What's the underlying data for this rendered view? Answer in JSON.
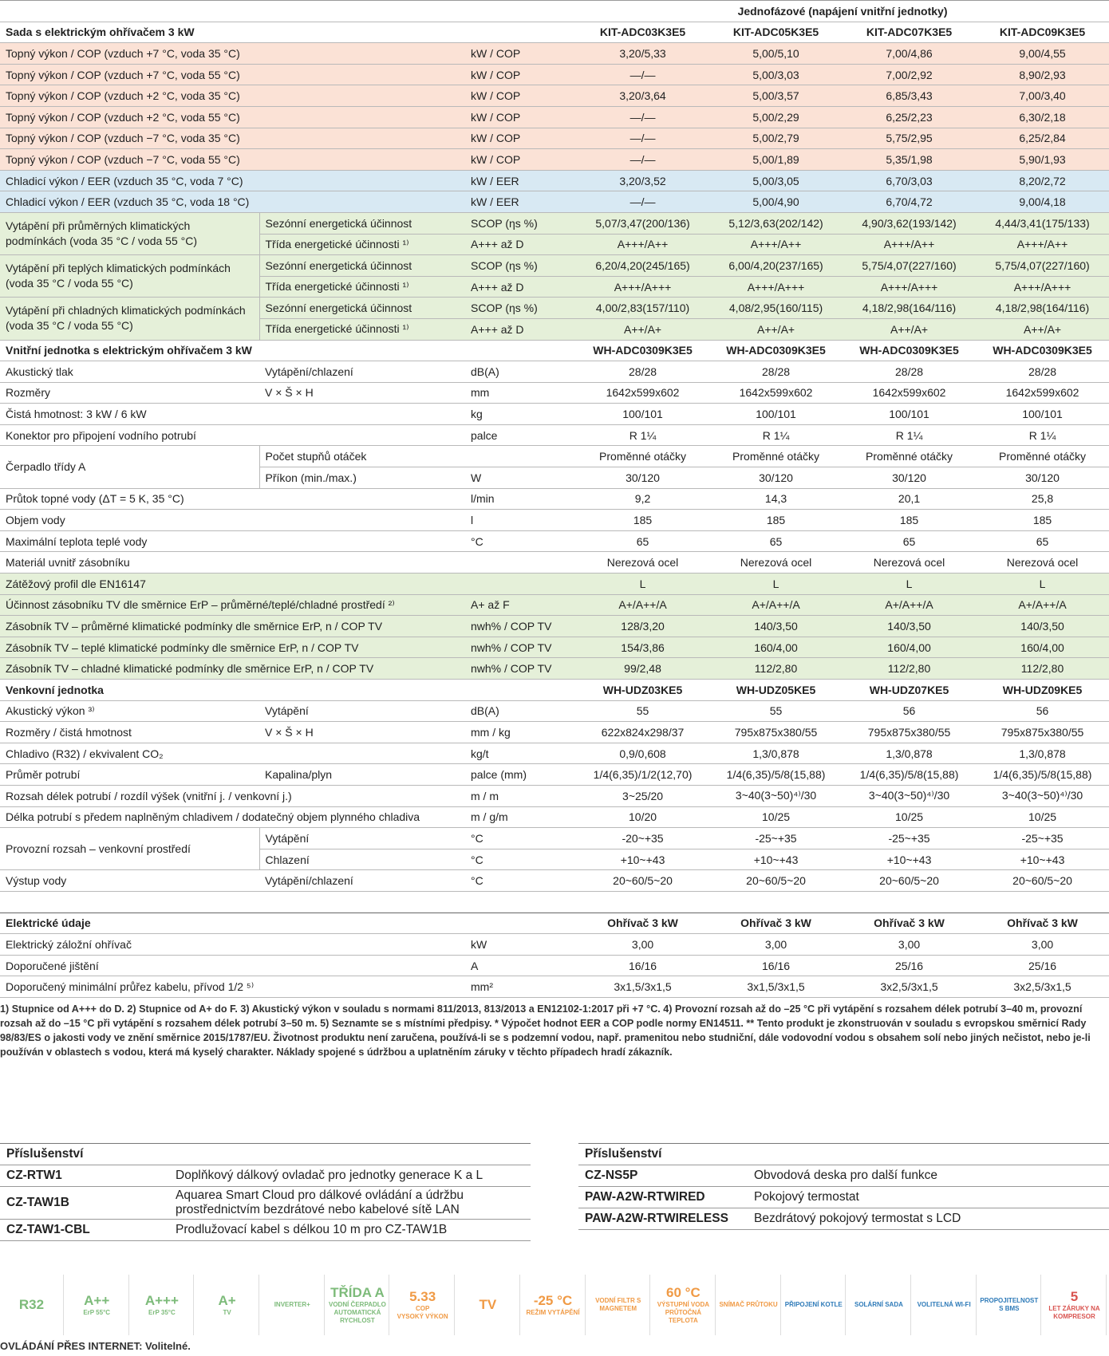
{
  "header_note": "Jednofázové (napájení vnitřní jednotky)",
  "sections": [
    {
      "title": "Sada s elektrickým ohřívačem 3 kW",
      "columns": [
        "KIT-ADC03K3E5",
        "KIT-ADC05K3E5",
        "KIT-ADC07K3E5",
        "KIT-ADC09K3E5"
      ],
      "rows": [
        {
          "label": "Topný výkon / COP (vzduch +7 °C, voda 35 °C)",
          "unit": "kW / COP",
          "values": [
            "3,20/5,33",
            "5,00/5,10",
            "7,00/4,86",
            "9,00/4,55"
          ]
        },
        {
          "label": "Topný výkon / COP (vzduch +7 °C, voda 55 °C)",
          "unit": "kW / COP",
          "values": [
            "—/—",
            "5,00/3,03",
            "7,00/2,92",
            "8,90/2,93"
          ]
        },
        {
          "label": "Topný výkon / COP (vzduch +2 °C, voda 35 °C)",
          "unit": "kW / COP",
          "values": [
            "3,20/3,64",
            "5,00/3,57",
            "6,85/3,43",
            "7,00/3,40"
          ]
        },
        {
          "label": "Topný výkon / COP (vzduch +2 °C, voda 55 °C)",
          "unit": "kW / COP",
          "values": [
            "—/—",
            "5,00/2,29",
            "6,25/2,23",
            "6,30/2,18"
          ]
        },
        {
          "label": "Topný výkon / COP (vzduch −7 °C, voda 35 °C)",
          "unit": "kW / COP",
          "values": [
            "—/—",
            "5,00/2,79",
            "5,75/2,95",
            "6,25/2,84"
          ]
        },
        {
          "label": "Topný výkon / COP (vzduch −7 °C, voda 55 °C)",
          "unit": "kW / COP",
          "values": [
            "—/—",
            "5,00/1,89",
            "5,35/1,98",
            "5,90/1,93"
          ]
        },
        {
          "label": "Chladicí výkon / EER (vzduch 35 °C, voda 7 °C)",
          "unit": "kW / EER",
          "values": [
            "3,20/3,52",
            "5,00/3,05",
            "6,70/3,03",
            "8,20/2,72"
          ]
        },
        {
          "label": "Chladicí výkon / EER (vzduch 35 °C, voda 18 °C)",
          "unit": "kW / EER",
          "values": [
            "—/—",
            "5,00/4,90",
            "6,70/4,72",
            "9,00/4,18"
          ]
        },
        {
          "label": "Vytápění při průměrných klimatických podmínkách (voda 35 °C / voda 55 °C)",
          "rows": [
            {
              "sub": "Sezónní energetická účinnost",
              "unit": "SCOP (ηs %)",
              "values": [
                "5,07/3,47(200/136)",
                "5,12/3,63(202/142)",
                "4,90/3,62(193/142)",
                "4,44/3,41(175/133)"
              ]
            },
            {
              "sub": "Třída energetické účinnosti ¹⁾",
              "unit": "A+++ až D",
              "values": [
                "A+++/A++",
                "A+++/A++",
                "A+++/A++",
                "A+++/A++"
              ]
            }
          ]
        },
        {
          "label": "Vytápění při teplých klimatických podmínkách (voda 35 °C / voda 55 °C)",
          "rows": [
            {
              "sub": "Sezónní energetická účinnost",
              "unit": "SCOP (ηs %)",
              "values": [
                "6,20/4,20(245/165)",
                "6,00/4,20(237/165)",
                "5,75/4,07(227/160)",
                "5,75/4,07(227/160)"
              ]
            },
            {
              "sub": "Třída energetické účinnosti ¹⁾",
              "unit": "A+++ až D",
              "values": [
                "A+++/A+++",
                "A+++/A+++",
                "A+++/A+++",
                "A+++/A+++"
              ]
            }
          ]
        },
        {
          "label": "Vytápění při chladných klimatických podmínkách (voda 35 °C / voda 55 °C)",
          "rows": [
            {
              "sub": "Sezónní energetická účinnost",
              "unit": "SCOP (ηs %)",
              "values": [
                "4,00/2,83(157/110)",
                "4,08/2,95(160/115)",
                "4,18/2,98(164/116)",
                "4,18/2,98(164/116)"
              ]
            },
            {
              "sub": "Třída energetické účinnosti ¹⁾",
              "unit": "A+++ až D",
              "values": [
                "A++/A+",
                "A++/A+",
                "A++/A+",
                "A++/A+"
              ]
            }
          ]
        }
      ]
    },
    {
      "title": "Vnitřní jednotka s elektrickým ohřívačem 3 kW",
      "columns": [
        "WH-ADC0309K3E5",
        "WH-ADC0309K3E5",
        "WH-ADC0309K3E5",
        "WH-ADC0309K3E5"
      ],
      "rows": [
        {
          "label": "Akustický tlak",
          "sub": "Vytápění/chlazení",
          "unit": "dB(A)",
          "values": [
            "28/28",
            "28/28",
            "28/28",
            "28/28"
          ]
        },
        {
          "label": "Rozměry",
          "sub": "V × Š × H",
          "unit": "mm",
          "values": [
            "1642x599x602",
            "1642x599x602",
            "1642x599x602",
            "1642x599x602"
          ]
        },
        {
          "label": "Čistá hmotnost: 3 kW / 6 kW",
          "unit": "kg",
          "values": [
            "100/101",
            "100/101",
            "100/101",
            "100/101"
          ]
        },
        {
          "label": "Konektor pro připojení vodního potrubí",
          "unit": "palce",
          "values": [
            "R 1¼",
            "R 1¼",
            "R 1¼",
            "R 1¼"
          ]
        },
        {
          "label": "Čerpadlo třídy A",
          "rows": [
            {
              "sub": "Počet stupňů otáček",
              "values": [
                "Proměnné otáčky",
                "Proměnné otáčky",
                "Proměnné otáčky",
                "Proměnné otáčky"
              ]
            },
            {
              "sub": "Příkon (min./max.)",
              "unit": "W",
              "values": [
                "30/120",
                "30/120",
                "30/120",
                "30/120"
              ]
            }
          ]
        },
        {
          "label": "Průtok topné vody (ΔT = 5 K, 35 °C)",
          "unit": "l/min",
          "values": [
            "9,2",
            "14,3",
            "20,1",
            "25,8"
          ]
        },
        {
          "label": "Objem vody",
          "unit": "l",
          "values": [
            "185",
            "185",
            "185",
            "185"
          ]
        },
        {
          "label": "Maximální teplota teplé vody",
          "unit": "°C",
          "values": [
            "65",
            "65",
            "65",
            "65"
          ]
        },
        {
          "label": "Materiál uvnitř zásobníku",
          "values": [
            "Nerezová ocel",
            "Nerezová ocel",
            "Nerezová ocel",
            "Nerezová ocel"
          ]
        },
        {
          "label": "Zátěžový profil dle EN16147",
          "values": [
            "L",
            "L",
            "L",
            "L"
          ]
        },
        {
          "label": "Účinnost zásobníku TV dle směrnice ErP – průměrné/teplé/chladné prostředí ²⁾",
          "unit": "A+ až F",
          "values": [
            "A+/A++/A",
            "A+/A++/A",
            "A+/A++/A",
            "A+/A++/A"
          ]
        },
        {
          "label": "Zásobník TV – průměrné klimatické podmínky dle směrnice ErP, n / COP TV",
          "unit": "nwh% / COP TV",
          "values": [
            "128/3,20",
            "140/3,50",
            "140/3,50",
            "140/3,50"
          ]
        },
        {
          "label": "Zásobník TV – teplé klimatické podmínky dle směrnice ErP, n / COP TV",
          "unit": "nwh% / COP TV",
          "values": [
            "154/3,86",
            "160/4,00",
            "160/4,00",
            "160/4,00"
          ]
        },
        {
          "label": "Zásobník TV – chladné klimatické podmínky dle směrnice ErP, n / COP TV",
          "unit": "nwh% / COP TV",
          "values": [
            "99/2,48",
            "112/2,80",
            "112/2,80",
            "112/2,80"
          ]
        }
      ]
    },
    {
      "title": "Venkovní jednotka",
      "columns": [
        "WH-UDZ03KE5",
        "WH-UDZ05KE5",
        "WH-UDZ07KE5",
        "WH-UDZ09KE5"
      ],
      "rows": [
        {
          "label": "Akustický výkon ³⁾",
          "sub": "Vytápění",
          "unit": "dB(A)",
          "values": [
            "55",
            "55",
            "56",
            "56"
          ]
        },
        {
          "label": "Rozměry / čistá hmotnost",
          "sub": "V × Š × H",
          "unit": "mm / kg",
          "values": [
            "622x824x298/37",
            "795x875x380/55",
            "795x875x380/55",
            "795x875x380/55"
          ]
        },
        {
          "label": "Chladivo (R32) / ekvivalent CO₂",
          "unit": "kg/t",
          "values": [
            "0,9/0,608",
            "1,3/0,878",
            "1,3/0,878",
            "1,3/0,878"
          ]
        },
        {
          "label": "Průměr potrubí",
          "sub": "Kapalina/plyn",
          "unit": "palce (mm)",
          "values": [
            "1/4(6,35)/1/2(12,70)",
            "1/4(6,35)/5/8(15,88)",
            "1/4(6,35)/5/8(15,88)",
            "1/4(6,35)/5/8(15,88)"
          ]
        },
        {
          "label": "Rozsah délek potrubí / rozdíl výšek (vnitřní j. / venkovní j.)",
          "unit": "m / m",
          "values": [
            "3~25/20",
            "3~40(3~50)⁴⁾/30",
            "3~40(3~50)⁴⁾/30",
            "3~40(3~50)⁴⁾/30"
          ]
        },
        {
          "label": "Délka potrubí s předem naplněným chladivem / dodatečný objem plynného chladiva",
          "unit": "m / g/m",
          "values": [
            "10/20",
            "10/25",
            "10/25",
            "10/25"
          ]
        },
        {
          "label": "Provozní rozsah – venkovní prostředí",
          "rows": [
            {
              "sub": "Vytápění",
              "unit": "°C",
              "values": [
                "-20~+35",
                "-25~+35",
                "-25~+35",
                "-25~+35"
              ]
            },
            {
              "sub": "Chlazení",
              "unit": "°C",
              "values": [
                "+10~+43",
                "+10~+43",
                "+10~+43",
                "+10~+43"
              ]
            }
          ]
        },
        {
          "label": "Výstup vody",
          "sub": "Vytápění/chlazení",
          "unit": "°C",
          "values": [
            "20~60/5~20",
            "20~60/5~20",
            "20~60/5~20",
            "20~60/5~20"
          ]
        }
      ]
    },
    {
      "title": "Elektrické údaje",
      "columns": [
        "Ohřívač 3 kW",
        "Ohřívač 3 kW",
        "Ohřívač 3 kW",
        "Ohřívač 3 kW"
      ],
      "rows": [
        {
          "label": "Elektrický záložní ohřívač",
          "unit": "kW",
          "values": [
            "3,00",
            "3,00",
            "3,00",
            "3,00"
          ]
        },
        {
          "label": "Doporučené jištění",
          "unit": "A",
          "values": [
            "16/16",
            "16/16",
            "25/16",
            "25/16"
          ]
        },
        {
          "label": "Doporučený minimální průřez kabelu, přívod 1/2 ⁵⁾",
          "unit": "mm²",
          "values": [
            "3x1,5/3x1,5",
            "3x1,5/3x1,5",
            "3x2,5/3x1,5",
            "3x2,5/3x1,5"
          ]
        }
      ]
    }
  ],
  "footnote": "1) Stupnice od A+++ do D. 2) Stupnice od A+ do F. 3) Akustický výkon v souladu s normami 811/2013, 813/2013 a EN12102-1:2017 při +7 °C. 4) Provozní rozsah až do –25 °C při vytápění s rozsahem délek potrubí 3–40 m, provozní rozsah až do –15 °C při vytápění s rozsahem délek potrubí 3–50 m. 5) Seznamte se s místními předpisy. * Výpočet hodnot EER a COP podle normy EN14511. ** Tento produkt je zkonstruován v souladu s evropskou směrnicí Rady 98/83/ES o jakosti vody ve znění směrnice 2015/1787/EU. Životnost produktu není zaručena, používá-li se s podzemní vodou, např. pramenitou nebo studniční, dále vodovodní vodou s obsahem solí nebo jiných nečistot, nebo je-li používán v oblastech s vodou, která má kyselý charakter. Náklady spojené s údržbou a uplatněním záruky v těchto případech hradí zákazník.",
  "accessories": [
    {
      "title": "Příslušenství",
      "items": [
        {
          "code": "CZ-RTW1",
          "desc": "Doplňkový dálkový ovladač pro jednotky generace K a L"
        },
        {
          "code": "CZ-TAW1B",
          "desc": "Aquarea Smart Cloud pro dálkové ovládání a údržbu prostřednictvím bezdrátové nebo kabelové sítě LAN"
        },
        {
          "code": "CZ-TAW1-CBL",
          "desc": "Prodlužovací kabel s délkou 10 m pro CZ-TAW1B"
        }
      ]
    },
    {
      "title": "Příslušenství",
      "items": [
        {
          "code": "CZ-NS5P",
          "desc": "Obvodová deska pro další funkce"
        },
        {
          "code": "PAW-A2W-RTWIRED",
          "desc": "Pokojový termostat"
        },
        {
          "code": "PAW-A2W-RTWIRELESS",
          "desc": "Bezdrátový pokojový termostat s LCD"
        }
      ]
    }
  ],
  "icons": [
    {
      "lines": [
        "R32"
      ]
    },
    {
      "lines": [
        "A++",
        "ErP 55°C"
      ]
    },
    {
      "lines": [
        "A+++",
        "ErP 35°C"
      ]
    },
    {
      "lines": [
        "A+",
        "TV"
      ]
    },
    {
      "lines": [
        "INVERTER+"
      ]
    },
    {
      "lines": [
        "TŘÍDA A",
        "VODNÍ ČERPADLO",
        "AUTOMATICKÁ RYCHLOST"
      ]
    },
    {
      "lines": [
        "5.33",
        "COP",
        "VYSOKÝ VÝKON"
      ]
    },
    {
      "lines": [
        "TV"
      ]
    },
    {
      "lines": [
        "-25 °C",
        "REŽIM VYTÁPĚNÍ"
      ]
    },
    {
      "lines": [
        "VODNÍ FILTR S MAGNETEM"
      ]
    },
    {
      "lines": [
        "60 °C",
        "VÝSTUPNÍ VODA",
        "PRŮTOČNÁ TEPLOTA"
      ]
    },
    {
      "lines": [
        "SNÍMAČ PRŮTOKU"
      ]
    },
    {
      "lines": [
        "PŘIPOJENÍ KOTLE"
      ]
    },
    {
      "lines": [
        "SOLÁRNÍ SADA"
      ]
    },
    {
      "lines": [
        "VOLITELNÁ WI-FI"
      ]
    },
    {
      "lines": [
        "PROPOJITELNOST S BMS"
      ]
    },
    {
      "lines": [
        "5",
        "LET ZÁRUKY NA KOMPRESOR"
      ]
    }
  ],
  "bottom_note": "OVLÁDÁNÍ PŘES INTERNET: Volitelné."
}
